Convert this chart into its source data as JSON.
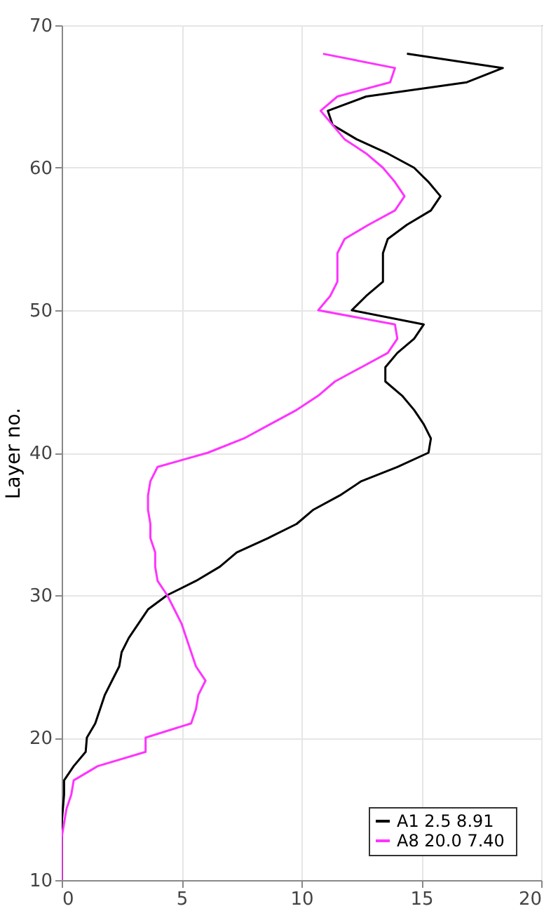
{
  "chart_data": {
    "type": "line",
    "ylabel": "Layer no.",
    "xlim": [
      0,
      20
    ],
    "xticks": [
      0,
      5,
      10,
      15,
      20
    ],
    "ylim": [
      10,
      70
    ],
    "yticks": [
      10,
      20,
      30,
      40,
      50,
      60,
      70
    ],
    "grid": true,
    "legend": "bottom right",
    "marker": "none",
    "line_style": "solid",
    "series": [
      {
        "name": "A1   2.5  8.91",
        "color": "#000000",
        "x": [
          0,
          0,
          0,
          0,
          0,
          0.05,
          0.1,
          0.1,
          0.5,
          1.0,
          1.05,
          1.4,
          1.6,
          1.8,
          2.1,
          2.4,
          2.5,
          2.8,
          3.2,
          3.6,
          4.4,
          5.6,
          6.6,
          7.3,
          8.6,
          9.8,
          10.5,
          11.6,
          12.5,
          14.0,
          15.3,
          15.4,
          15.1,
          14.7,
          14.2,
          13.5,
          13.5,
          14.0,
          14.7,
          15.1,
          12.1,
          12.7,
          13.4,
          13.4,
          13.4,
          13.6,
          14.4,
          15.4,
          15.8,
          15.3,
          14.7,
          13.6,
          12.3,
          11.3,
          11.1,
          12.7,
          16.9,
          18.4,
          14.4
        ],
        "values": [
          10,
          11,
          12,
          13,
          14,
          15,
          16,
          17,
          18,
          19,
          20,
          21,
          22,
          23,
          24,
          25,
          26,
          27,
          28,
          29,
          30,
          31,
          32,
          33,
          34,
          35,
          36,
          37,
          38,
          39,
          40,
          41,
          42,
          43,
          44,
          45,
          46,
          47,
          48,
          49,
          50,
          51,
          52,
          53,
          54,
          55,
          56,
          57,
          58,
          59,
          60,
          61,
          62,
          63,
          64,
          65,
          66,
          67,
          68
        ]
      },
      {
        "name": "A8 20.0  7.40",
        "color": "#ff33ff",
        "x": [
          0,
          0,
          0,
          0,
          0.1,
          0.2,
          0.4,
          0.5,
          1.5,
          3.5,
          3.5,
          5.4,
          5.6,
          5.7,
          6.0,
          5.6,
          5.4,
          5.2,
          5.0,
          4.7,
          4.4,
          4.0,
          3.9,
          3.9,
          3.7,
          3.7,
          3.6,
          3.6,
          3.7,
          4.0,
          6.1,
          7.6,
          8.7,
          9.8,
          10.7,
          11.4,
          12.5,
          13.6,
          14.0,
          13.9,
          10.7,
          11.2,
          11.5,
          11.5,
          11.5,
          11.8,
          12.8,
          13.9,
          14.3,
          13.9,
          13.4,
          12.7,
          11.8,
          11.3,
          10.8,
          11.5,
          13.7,
          13.9,
          10.9
        ],
        "values": [
          10,
          11,
          12,
          13,
          14,
          15,
          16,
          17,
          18,
          19,
          20,
          21,
          22,
          23,
          24,
          25,
          26,
          27,
          28,
          29,
          30,
          31,
          32,
          33,
          34,
          35,
          36,
          37,
          38,
          39,
          40,
          41,
          42,
          43,
          44,
          45,
          46,
          47,
          48,
          49,
          50,
          51,
          52,
          53,
          54,
          55,
          56,
          57,
          58,
          59,
          60,
          61,
          62,
          63,
          64,
          65,
          66,
          67,
          68
        ]
      }
    ]
  }
}
